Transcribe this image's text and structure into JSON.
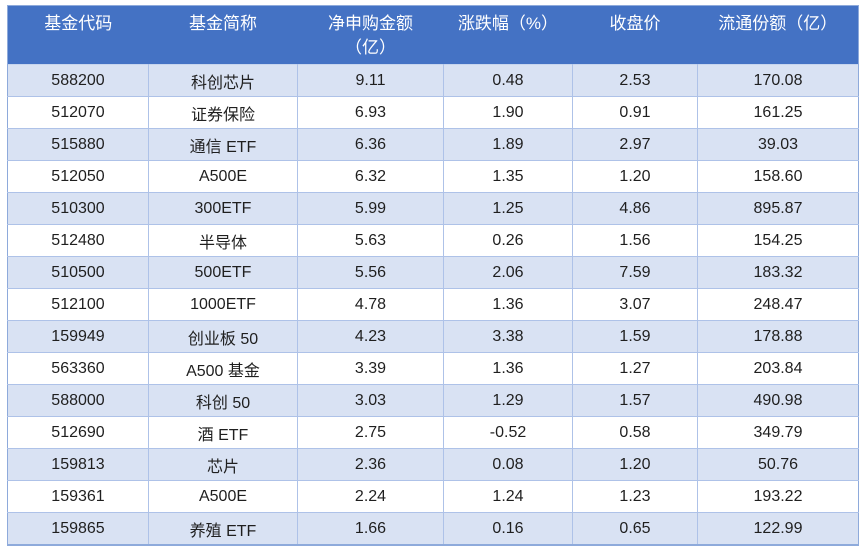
{
  "colors": {
    "header_bg": "#4472C4",
    "header_text": "#FFFFFF",
    "band_row_bg": "#D9E2F3",
    "plain_row_bg": "#FFFFFF",
    "border": "#AEC2E8",
    "outer_border": "#8EAADB",
    "cell_text": "#1F1F1F"
  },
  "chart_data": {
    "type": "table",
    "title": "",
    "columns": [
      {
        "id": "fund-code",
        "label": "基金代码"
      },
      {
        "id": "fund-name",
        "label": "基金简称"
      },
      {
        "id": "net-subscription",
        "label": "净申购金额\n（亿）"
      },
      {
        "id": "change-pct",
        "label": "涨跌幅（%）"
      },
      {
        "id": "close-price",
        "label": "收盘价"
      },
      {
        "id": "float-shares",
        "label": "流通份额（亿）"
      }
    ],
    "rows": [
      [
        "588200",
        "科创芯片",
        "9.11",
        "0.48",
        "2.53",
        "170.08"
      ],
      [
        "512070",
        "证券保险",
        "6.93",
        "1.90",
        "0.91",
        "161.25"
      ],
      [
        "515880",
        "通信 ETF",
        "6.36",
        "1.89",
        "2.97",
        "39.03"
      ],
      [
        "512050",
        "A500E",
        "6.32",
        "1.35",
        "1.20",
        "158.60"
      ],
      [
        "510300",
        "300ETF",
        "5.99",
        "1.25",
        "4.86",
        "895.87"
      ],
      [
        "512480",
        "半导体",
        "5.63",
        "0.26",
        "1.56",
        "154.25"
      ],
      [
        "510500",
        "500ETF",
        "5.56",
        "2.06",
        "7.59",
        "183.32"
      ],
      [
        "512100",
        "1000ETF",
        "4.78",
        "1.36",
        "3.07",
        "248.47"
      ],
      [
        "159949",
        "创业板 50",
        "4.23",
        "3.38",
        "1.59",
        "178.88"
      ],
      [
        "563360",
        "A500 基金",
        "3.39",
        "1.36",
        "1.27",
        "203.84"
      ],
      [
        "588000",
        "科创 50",
        "3.03",
        "1.29",
        "1.57",
        "490.98"
      ],
      [
        "512690",
        "酒 ETF",
        "2.75",
        "-0.52",
        "0.58",
        "349.79"
      ],
      [
        "159813",
        "芯片",
        "2.36",
        "0.08",
        "1.20",
        "50.76"
      ],
      [
        "159361",
        "A500E",
        "2.24",
        "1.24",
        "1.23",
        "193.22"
      ],
      [
        "159865",
        "养殖 ETF",
        "1.66",
        "0.16",
        "0.65",
        "122.99"
      ]
    ]
  }
}
